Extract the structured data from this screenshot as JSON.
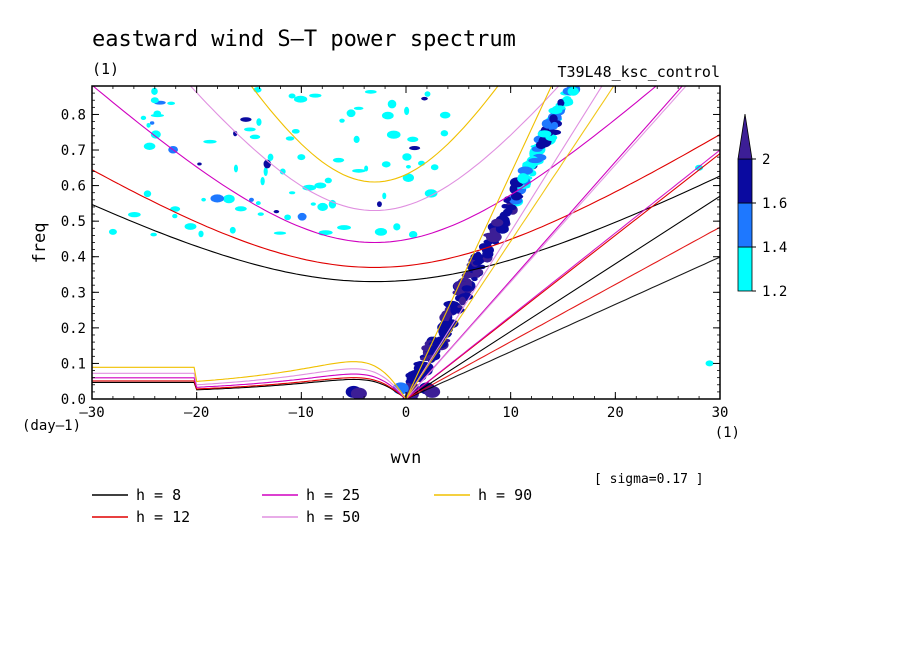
{
  "chart_data": {
    "type": "heatmap",
    "title": "eastward wind S–T power spectrum",
    "subtitle_left": "(1)",
    "subtitle_right": "T39L48_ksc_control",
    "xlabel": "wvn",
    "ylabel": "freq",
    "x_unit": "(1)",
    "y_unit": "(day–1)",
    "xlim": [
      -30,
      30
    ],
    "ylim": [
      0,
      0.88
    ],
    "x_ticks": [
      -30,
      -20,
      -10,
      0,
      10,
      20,
      30
    ],
    "x_tick_labels": [
      "–30",
      "–20",
      "–10",
      "0",
      "10",
      "20",
      "30"
    ],
    "y_ticks": [
      0,
      0.1,
      0.2,
      0.3,
      0.4,
      0.5,
      0.6,
      0.7,
      0.8
    ],
    "y_tick_labels": [
      "0.0",
      "0.1",
      "0.2",
      "0.3",
      "0.4",
      "0.5",
      "0.6",
      "0.7",
      "0.8"
    ],
    "sigma_note": "[ sigma=0.17 ]",
    "colorbar": {
      "levels": [
        1.2,
        1.4,
        1.6,
        2
      ],
      "level_labels": [
        "1.2",
        "1.4",
        "1.6",
        "2"
      ],
      "colors": [
        "#00ffff",
        "#1e78ff",
        "#0a0aa0",
        "#3c1e96"
      ]
    },
    "equivalent_depth_curves": [
      {
        "h": 8,
        "label": "h =  8",
        "color": "#000000",
        "kelvin_freq_at_30": 0.57,
        "ig_freq_min": 0.33,
        "rossby_max": 0.055
      },
      {
        "h": 12,
        "label": "h = 12",
        "color": "#e00000",
        "kelvin_freq_at_30": 0.69,
        "ig_freq_min": 0.37,
        "rossby_max": 0.06
      },
      {
        "h": 25,
        "label": "h = 25",
        "color": "#d000c0",
        "kelvin_freq_at_30": 1.0,
        "ig_freq_min": 0.44,
        "rossby_max": 0.07
      },
      {
        "h": 50,
        "label": "h = 50",
        "color": "#e090e0",
        "kelvin_freq_at_30": 1.41,
        "ig_freq_min": 0.53,
        "rossby_max": 0.085
      },
      {
        "h": 90,
        "label": "h = 90",
        "color": "#f0c000",
        "kelvin_freq_at_30": 1.9,
        "ig_freq_min": 0.61,
        "rossby_max": 0.105
      }
    ],
    "grid": false,
    "legend_placement": "bottom"
  }
}
